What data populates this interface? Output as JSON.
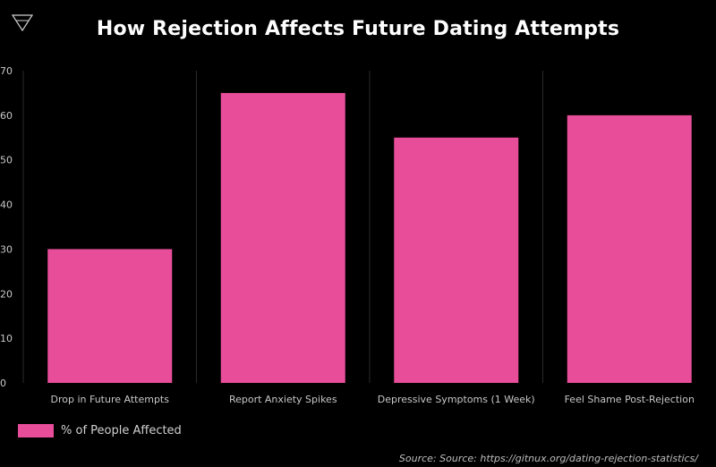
{
  "colors": {
    "bar": "#e84d9a",
    "background": "#000000",
    "grid": "#2a2a2a"
  },
  "logo": {
    "icon": "triangle-logo-icon"
  },
  "chart_data": {
    "type": "bar",
    "title": "How Rejection Affects Future Dating Attempts",
    "categories": [
      "Drop in Future Attempts",
      "Report Anxiety Spikes",
      "Depressive Symptoms (1 Week)",
      "Feel Shame Post-Rejection"
    ],
    "series": [
      {
        "name": "% of People Affected",
        "values": [
          30,
          65,
          55,
          60
        ]
      }
    ],
    "yticks": [
      "0",
      "10",
      "20",
      "30",
      "40",
      "50",
      "60",
      "70"
    ],
    "ylim": [
      0,
      70
    ],
    "grid": "vertical separators between categories",
    "legend": "bottom-left",
    "source": "Source: Source: https://gitnux.org/dating-rejection-statistics/"
  }
}
